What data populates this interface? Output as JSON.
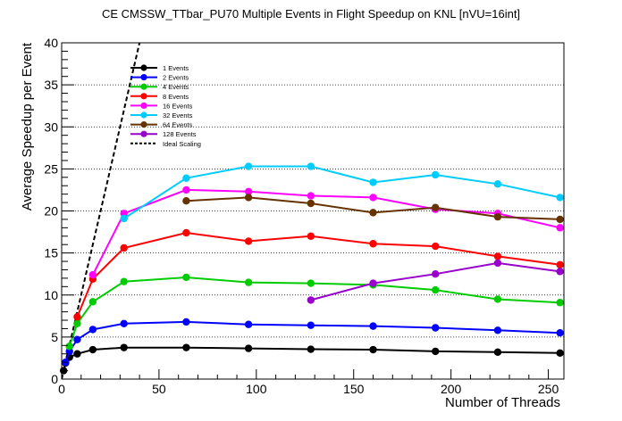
{
  "chart_data": {
    "type": "line",
    "title": "CE CMSSW_TTbar_PU70 Multiple Events in Flight Speedup on KNL [nVU=16int]",
    "xlabel": "Number of Threads",
    "ylabel": "Average Speedup per Event",
    "xlim": [
      0,
      258
    ],
    "ylim": [
      0,
      40
    ],
    "x_ticks": [
      0,
      50,
      100,
      150,
      200,
      250
    ],
    "y_ticks": [
      0,
      5,
      10,
      15,
      20,
      25,
      30,
      35,
      40
    ],
    "grid": "horizontal dotted",
    "legend_position": "top-left",
    "series": [
      {
        "name": "1 Events",
        "color": "#000000",
        "x": [
          1,
          2,
          4,
          8,
          16,
          32,
          64,
          96,
          128,
          160,
          192,
          224,
          256
        ],
        "y": [
          1.0,
          1.9,
          2.6,
          3.0,
          3.5,
          3.75,
          3.75,
          3.65,
          3.55,
          3.5,
          3.3,
          3.2,
          3.1
        ]
      },
      {
        "name": "2 Events",
        "color": "#0000ff",
        "x": [
          2,
          4,
          8,
          16,
          32,
          64,
          96,
          128,
          160,
          192,
          224,
          256
        ],
        "y": [
          2.0,
          3.3,
          4.7,
          5.9,
          6.6,
          6.8,
          6.5,
          6.4,
          6.3,
          6.1,
          5.8,
          5.5
        ]
      },
      {
        "name": "4 Events",
        "color": "#00cc00",
        "x": [
          4,
          8,
          16,
          32,
          64,
          96,
          128,
          160,
          192,
          224,
          256
        ],
        "y": [
          3.9,
          6.6,
          9.2,
          11.6,
          12.1,
          11.5,
          11.4,
          11.2,
          10.6,
          9.5,
          9.1
        ]
      },
      {
        "name": "8 Events",
        "color": "#ff0000",
        "x": [
          8,
          16,
          32,
          64,
          96,
          128,
          160,
          192,
          224,
          256
        ],
        "y": [
          7.4,
          11.9,
          15.6,
          17.4,
          16.4,
          17.0,
          16.1,
          15.8,
          14.6,
          13.6
        ]
      },
      {
        "name": "16 Events",
        "color": "#ff00ff",
        "x": [
          16,
          32,
          64,
          96,
          128,
          160,
          192,
          224,
          256
        ],
        "y": [
          12.4,
          19.7,
          22.5,
          22.3,
          21.8,
          21.6,
          20.2,
          19.7,
          18.0
        ]
      },
      {
        "name": "32 Events",
        "color": "#00ccff",
        "x": [
          32,
          64,
          96,
          128,
          160,
          192,
          224,
          256
        ],
        "y": [
          19.1,
          23.9,
          25.3,
          25.3,
          23.4,
          24.3,
          23.2,
          21.6
        ]
      },
      {
        "name": "64 Events",
        "color": "#663300",
        "x": [
          64,
          96,
          128,
          160,
          192,
          224,
          256
        ],
        "y": [
          21.2,
          21.6,
          20.9,
          19.8,
          20.4,
          19.3,
          19.0
        ]
      },
      {
        "name": "128 Events",
        "color": "#9900cc",
        "x": [
          128,
          160,
          192,
          224,
          256
        ],
        "y": [
          9.4,
          11.4,
          12.5,
          13.8,
          12.8
        ]
      }
    ],
    "reference": {
      "name": "Ideal Scaling",
      "color": "#000000",
      "style": "dashed",
      "x": [
        0,
        40
      ],
      "y": [
        0,
        40
      ]
    }
  }
}
